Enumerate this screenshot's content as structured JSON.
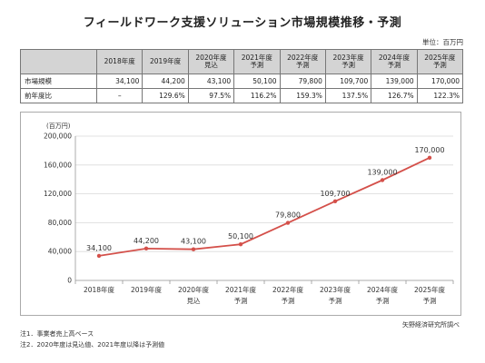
{
  "chart_title": "フィールドワーク支援ソリューション市場規模推移・予測",
  "unit_label": "単位：百万円",
  "table": {
    "header_blank": "",
    "columns": [
      {
        "line1": "2018年度",
        "line2": ""
      },
      {
        "line1": "2019年度",
        "line2": ""
      },
      {
        "line1": "2020年度",
        "line2": "見込"
      },
      {
        "line1": "2021年度",
        "line2": "予測"
      },
      {
        "line1": "2022年度",
        "line2": "予測"
      },
      {
        "line1": "2023年度",
        "line2": "予測"
      },
      {
        "line1": "2024年度",
        "line2": "予測"
      },
      {
        "line1": "2025年度",
        "line2": "予測"
      }
    ],
    "rows": [
      {
        "label": "市場規模",
        "cells": [
          "34,100",
          "44,200",
          "43,100",
          "50,100",
          "79,800",
          "109,700",
          "139,000",
          "170,000"
        ]
      },
      {
        "label": "前年度比",
        "cells": [
          "–",
          "129.6%",
          "97.5%",
          "116.2%",
          "159.3%",
          "137.5%",
          "126.7%",
          "122.3%"
        ]
      }
    ]
  },
  "chart_data": {
    "type": "line",
    "ylabel": "(百万円)",
    "ylim": [
      0,
      200000
    ],
    "yticks": [
      0,
      40000,
      80000,
      120000,
      160000,
      200000
    ],
    "ytick_labels": [
      "0",
      "40,000",
      "80,000",
      "120,000",
      "160,000",
      "200,000"
    ],
    "grid": true,
    "categories": [
      {
        "line1": "2018年度",
        "line2": ""
      },
      {
        "line1": "2019年度",
        "line2": ""
      },
      {
        "line1": "2020年度",
        "line2": "見込"
      },
      {
        "line1": "2021年度",
        "line2": "予測"
      },
      {
        "line1": "2022年度",
        "line2": "予測"
      },
      {
        "line1": "2023年度",
        "line2": "予測"
      },
      {
        "line1": "2024年度",
        "line2": "予測"
      },
      {
        "line1": "2025年度",
        "line2": "予測"
      }
    ],
    "values": [
      34100,
      44200,
      43100,
      50100,
      79800,
      109700,
      139000,
      170000
    ],
    "data_labels": [
      "34,100",
      "44,200",
      "43,100",
      "50,100",
      "79,800",
      "109,700",
      "139,000",
      "170,000"
    ],
    "color": "#d4504a"
  },
  "notes": [
    "注1．事業者売上高ベース",
    "注2．2020年度は見込値、2021年度以降は予測値"
  ],
  "source": "矢野経済研究所調べ"
}
